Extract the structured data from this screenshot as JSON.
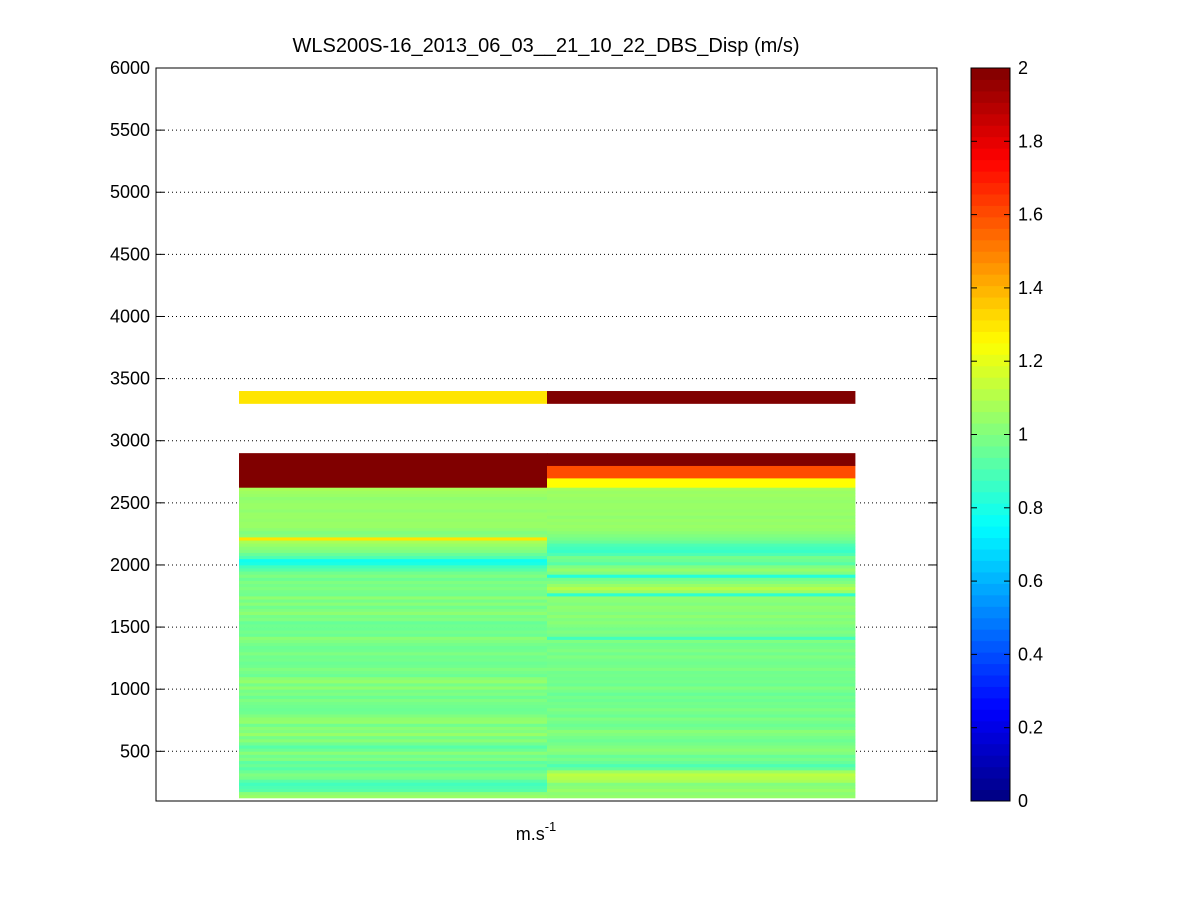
{
  "chart_data": {
    "type": "heatmap",
    "title": "WLS200S-16_2013_06_03__21_10_22_DBS_Disp (m/s)",
    "xlabel_base": "m.s",
    "xlabel_sup": "-1",
    "ylabel": "",
    "ylim": [
      100,
      6000
    ],
    "yticks": [
      500,
      1000,
      1500,
      2000,
      2500,
      3000,
      3500,
      4000,
      4500,
      5000,
      5500,
      6000
    ],
    "grid": "y-dotted",
    "colorbar": {
      "colormap": "jet",
      "clim": [
        0,
        2
      ],
      "ticks": [
        0,
        0.2,
        0.4,
        0.6,
        0.8,
        1,
        1.2,
        1.4,
        1.6,
        1.8,
        2
      ]
    },
    "columns": [
      {
        "bins": [
          [
            125,
            150,
            1.05
          ],
          [
            150,
            175,
            1.02
          ],
          [
            175,
            200,
            0.92
          ],
          [
            200,
            225,
            0.9
          ],
          [
            225,
            250,
            0.88
          ],
          [
            250,
            275,
            0.92
          ],
          [
            275,
            300,
            0.98
          ],
          [
            300,
            325,
            1.0
          ],
          [
            325,
            350,
            0.96
          ],
          [
            350,
            375,
            0.92
          ],
          [
            375,
            400,
            0.96
          ],
          [
            400,
            425,
            0.93
          ],
          [
            425,
            450,
            1.0
          ],
          [
            450,
            475,
            0.97
          ],
          [
            475,
            500,
            1.02
          ],
          [
            500,
            525,
            0.96
          ],
          [
            525,
            550,
            0.92
          ],
          [
            550,
            575,
            0.97
          ],
          [
            575,
            600,
            1.02
          ],
          [
            600,
            625,
            0.98
          ],
          [
            625,
            650,
            1.05
          ],
          [
            650,
            675,
            1.0
          ],
          [
            675,
            700,
            1.02
          ],
          [
            700,
            725,
            0.97
          ],
          [
            725,
            750,
            1.04
          ],
          [
            750,
            775,
            1.03
          ],
          [
            775,
            800,
            1.0
          ],
          [
            800,
            825,
            0.97
          ],
          [
            825,
            850,
            0.96
          ],
          [
            850,
            875,
            0.97
          ],
          [
            875,
            900,
            0.98
          ],
          [
            900,
            925,
            1.0
          ],
          [
            925,
            950,
            0.96
          ],
          [
            950,
            975,
            1.0
          ],
          [
            975,
            1000,
            0.98
          ],
          [
            1000,
            1025,
            1.03
          ],
          [
            1025,
            1050,
            0.98
          ],
          [
            1050,
            1075,
            1.04
          ],
          [
            1075,
            1100,
            1.02
          ],
          [
            1100,
            1125,
            0.96
          ],
          [
            1125,
            1150,
            0.98
          ],
          [
            1150,
            1175,
            1.0
          ],
          [
            1175,
            1200,
            0.97
          ],
          [
            1200,
            1225,
            0.96
          ],
          [
            1225,
            1250,
            0.98
          ],
          [
            1250,
            1275,
            0.97
          ],
          [
            1275,
            1300,
            1.0
          ],
          [
            1300,
            1325,
            0.97
          ],
          [
            1325,
            1350,
            0.96
          ],
          [
            1350,
            1375,
            0.98
          ],
          [
            1375,
            1400,
            1.0
          ],
          [
            1400,
            1425,
            1.02
          ],
          [
            1425,
            1450,
            0.96
          ],
          [
            1450,
            1475,
            0.98
          ],
          [
            1475,
            1500,
            0.96
          ],
          [
            1500,
            1525,
            0.97
          ],
          [
            1525,
            1550,
            0.95
          ],
          [
            1550,
            1575,
            1.0
          ],
          [
            1575,
            1600,
            0.98
          ],
          [
            1600,
            1625,
            1.03
          ],
          [
            1625,
            1650,
            1.0
          ],
          [
            1650,
            1675,
            0.97
          ],
          [
            1675,
            1700,
            1.02
          ],
          [
            1700,
            1725,
            0.98
          ],
          [
            1725,
            1750,
            1.03
          ],
          [
            1750,
            1775,
            0.97
          ],
          [
            1775,
            1800,
            0.98
          ],
          [
            1800,
            1825,
            1.0
          ],
          [
            1825,
            1850,
            0.98
          ],
          [
            1850,
            1875,
            1.0
          ],
          [
            1875,
            1900,
            0.96
          ],
          [
            1900,
            1925,
            1.0
          ],
          [
            1925,
            1950,
            0.97
          ],
          [
            1950,
            1975,
            0.92
          ],
          [
            1975,
            2000,
            0.88
          ],
          [
            2000,
            2025,
            0.8
          ],
          [
            2025,
            2050,
            0.78
          ],
          [
            2050,
            2075,
            0.9
          ],
          [
            2075,
            2100,
            0.95
          ],
          [
            2100,
            2125,
            1.0
          ],
          [
            2125,
            2150,
            1.02
          ],
          [
            2150,
            2175,
            1.05
          ],
          [
            2175,
            2200,
            1.08
          ],
          [
            2200,
            2225,
            1.3
          ],
          [
            2225,
            2250,
            1.02
          ],
          [
            2250,
            2275,
            1.0
          ],
          [
            2275,
            2300,
            1.03
          ],
          [
            2300,
            2325,
            1.05
          ],
          [
            2325,
            2350,
            1.05
          ],
          [
            2350,
            2375,
            1.04
          ],
          [
            2375,
            2400,
            1.05
          ],
          [
            2400,
            2425,
            1.05
          ],
          [
            2425,
            2450,
            1.03
          ],
          [
            2450,
            2475,
            1.05
          ],
          [
            2475,
            2500,
            1.05
          ],
          [
            2500,
            2525,
            1.04
          ],
          [
            2525,
            2550,
            1.03
          ],
          [
            2550,
            2575,
            1.05
          ],
          [
            2575,
            2600,
            1.06
          ],
          [
            2600,
            2625,
            1.08
          ],
          [
            2625,
            2900,
            2.0
          ],
          [
            3300,
            3400,
            1.3
          ]
        ]
      },
      {
        "bins": [
          [
            125,
            150,
            1.04
          ],
          [
            150,
            175,
            1.02
          ],
          [
            175,
            200,
            1.05
          ],
          [
            200,
            225,
            1.02
          ],
          [
            225,
            250,
            1.0
          ],
          [
            250,
            275,
            1.08
          ],
          [
            275,
            300,
            1.1
          ],
          [
            300,
            325,
            1.12
          ],
          [
            325,
            350,
            1.06
          ],
          [
            350,
            375,
            0.95
          ],
          [
            375,
            400,
            0.9
          ],
          [
            400,
            425,
            0.95
          ],
          [
            425,
            450,
            0.98
          ],
          [
            450,
            475,
            0.95
          ],
          [
            475,
            500,
            1.0
          ],
          [
            500,
            525,
            1.02
          ],
          [
            525,
            550,
            1.0
          ],
          [
            550,
            575,
            0.98
          ],
          [
            575,
            600,
            0.96
          ],
          [
            600,
            625,
            0.98
          ],
          [
            625,
            650,
            1.0
          ],
          [
            650,
            675,
            1.02
          ],
          [
            675,
            700,
            0.98
          ],
          [
            700,
            725,
            0.96
          ],
          [
            725,
            750,
            0.98
          ],
          [
            750,
            775,
            1.0
          ],
          [
            775,
            800,
            0.96
          ],
          [
            800,
            825,
            0.98
          ],
          [
            825,
            850,
            1.0
          ],
          [
            850,
            875,
            0.97
          ],
          [
            875,
            900,
            0.98
          ],
          [
            900,
            925,
            0.96
          ],
          [
            925,
            950,
            0.98
          ],
          [
            950,
            975,
            0.95
          ],
          [
            975,
            1000,
            0.98
          ],
          [
            1000,
            1025,
            1.0
          ],
          [
            1025,
            1050,
            0.96
          ],
          [
            1050,
            1075,
            0.98
          ],
          [
            1075,
            1100,
            0.97
          ],
          [
            1100,
            1125,
            0.98
          ],
          [
            1125,
            1150,
            0.97
          ],
          [
            1150,
            1175,
            1.0
          ],
          [
            1175,
            1200,
            0.98
          ],
          [
            1200,
            1225,
            0.97
          ],
          [
            1225,
            1250,
            0.98
          ],
          [
            1250,
            1275,
            1.0
          ],
          [
            1275,
            1300,
            0.97
          ],
          [
            1300,
            1325,
            1.0
          ],
          [
            1325,
            1350,
            0.98
          ],
          [
            1350,
            1375,
            0.97
          ],
          [
            1375,
            1400,
            1.0
          ],
          [
            1400,
            1425,
            0.88
          ],
          [
            1425,
            1450,
            0.98
          ],
          [
            1450,
            1475,
            1.0
          ],
          [
            1475,
            1500,
            0.98
          ],
          [
            1500,
            1525,
            1.0
          ],
          [
            1525,
            1550,
            1.02
          ],
          [
            1550,
            1575,
            1.0
          ],
          [
            1575,
            1600,
            1.03
          ],
          [
            1600,
            1625,
            1.0
          ],
          [
            1625,
            1650,
            1.02
          ],
          [
            1650,
            1675,
            1.03
          ],
          [
            1675,
            1700,
            1.0
          ],
          [
            1700,
            1725,
            1.02
          ],
          [
            1725,
            1750,
            1.03
          ],
          [
            1750,
            1775,
            0.84
          ],
          [
            1775,
            1800,
            1.05
          ],
          [
            1800,
            1825,
            1.1
          ],
          [
            1825,
            1850,
            1.05
          ],
          [
            1850,
            1875,
            1.0
          ],
          [
            1875,
            1900,
            0.97
          ],
          [
            1900,
            1925,
            0.82
          ],
          [
            1925,
            1950,
            1.0
          ],
          [
            1950,
            1975,
            1.04
          ],
          [
            1975,
            2000,
            1.0
          ],
          [
            2000,
            2025,
            0.92
          ],
          [
            2025,
            2050,
            0.96
          ],
          [
            2050,
            2075,
            0.98
          ],
          [
            2075,
            2100,
            0.9
          ],
          [
            2100,
            2125,
            0.86
          ],
          [
            2125,
            2150,
            0.88
          ],
          [
            2150,
            2175,
            0.9
          ],
          [
            2175,
            2200,
            0.95
          ],
          [
            2200,
            2225,
            0.98
          ],
          [
            2225,
            2250,
            1.0
          ],
          [
            2250,
            2275,
            1.02
          ],
          [
            2275,
            2300,
            1.04
          ],
          [
            2300,
            2325,
            1.05
          ],
          [
            2325,
            2350,
            1.04
          ],
          [
            2350,
            2375,
            1.05
          ],
          [
            2375,
            2400,
            1.03
          ],
          [
            2400,
            2425,
            1.05
          ],
          [
            2425,
            2450,
            1.04
          ],
          [
            2450,
            2475,
            1.05
          ],
          [
            2475,
            2500,
            1.05
          ],
          [
            2500,
            2525,
            1.04
          ],
          [
            2525,
            2550,
            1.05
          ],
          [
            2550,
            2575,
            1.06
          ],
          [
            2575,
            2600,
            1.05
          ],
          [
            2600,
            2625,
            1.07
          ],
          [
            2625,
            2700,
            1.25
          ],
          [
            2700,
            2800,
            1.6
          ],
          [
            2800,
            2900,
            2.0
          ],
          [
            3300,
            3400,
            2.0
          ]
        ]
      }
    ]
  }
}
